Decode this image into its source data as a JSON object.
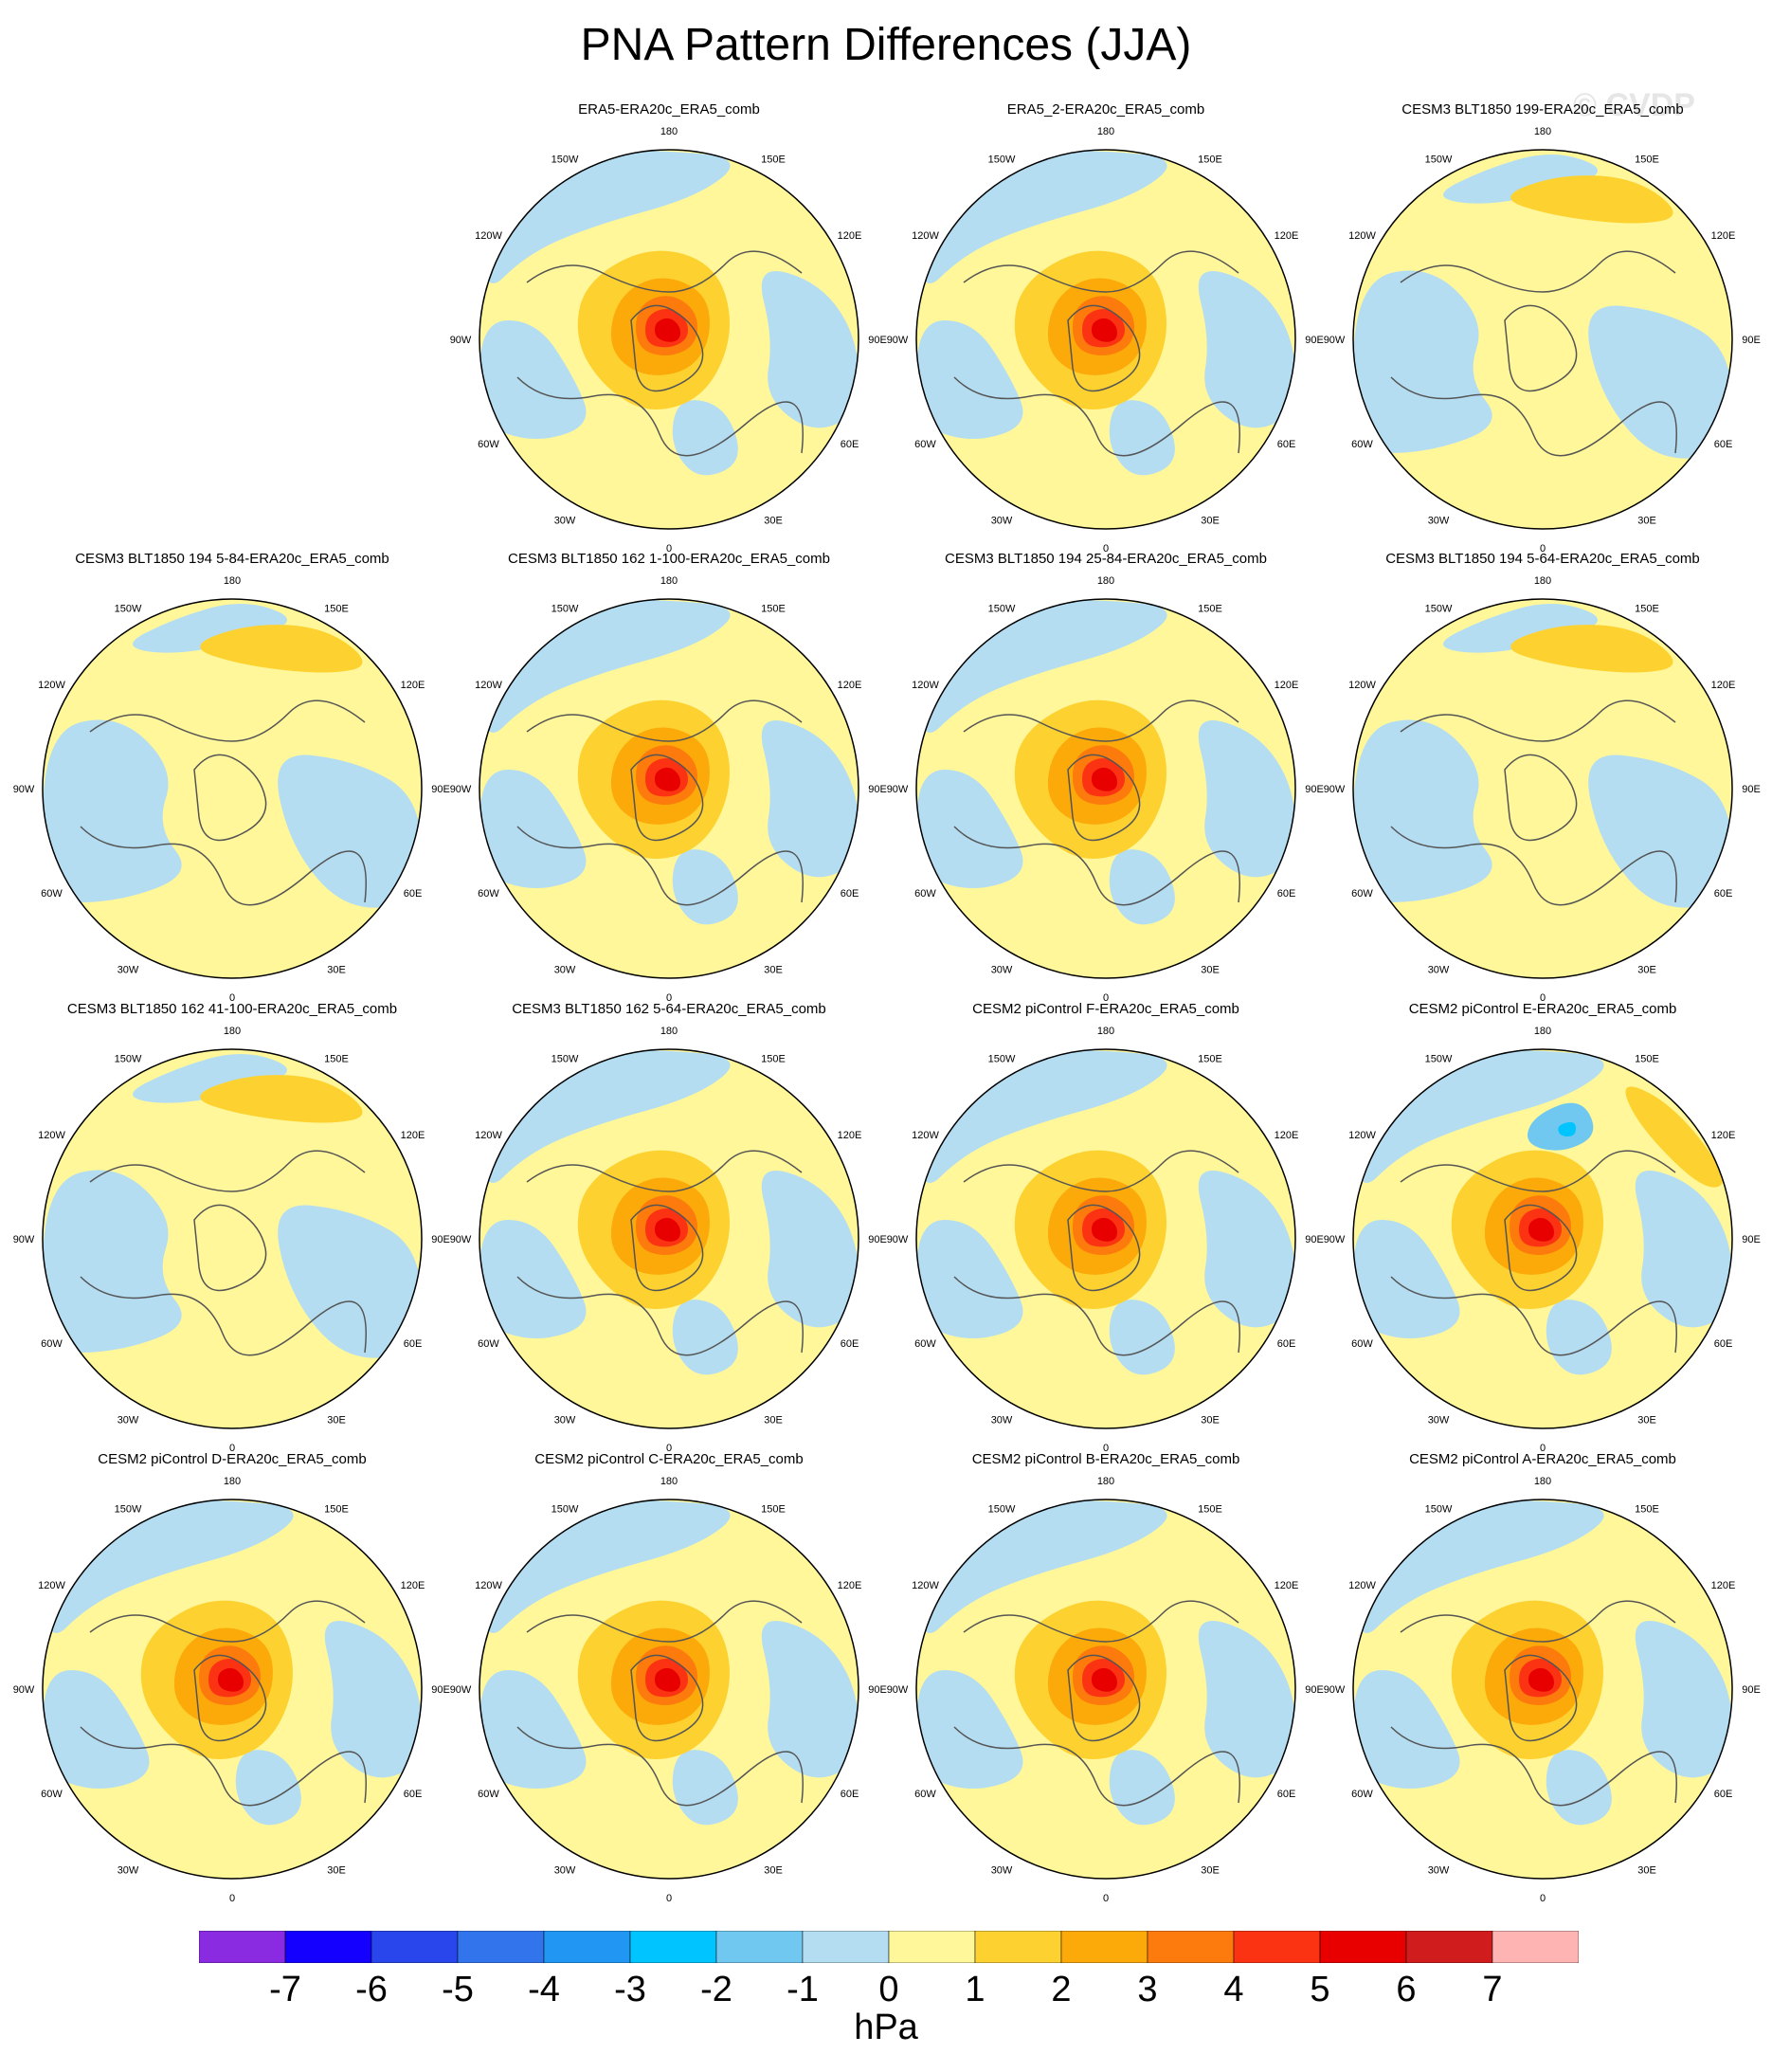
{
  "title": "PNA Pattern Differences (JJA)",
  "watermark": "© CVDP",
  "panels": [
    {
      "name": "ERA5-ERA20c_ERA5_comb",
      "empty": false,
      "variant": "center"
    },
    {
      "name": "ERA5_2-ERA20c_ERA5_comb",
      "empty": false,
      "variant": "center"
    },
    {
      "name": "CESM3 BLT1850 199-ERA20c_ERA5_comb",
      "empty": false,
      "variant": "arc"
    },
    {
      "name": "CESM3 BLT1850 194 5-84-ERA20c_ERA5_comb",
      "empty": false,
      "variant": "arc"
    },
    {
      "name": "CESM3 BLT1850 162 1-100-ERA20c_ERA5_comb",
      "empty": false,
      "variant": "center"
    },
    {
      "name": "CESM3 BLT1850 194 25-84-ERA20c_ERA5_comb",
      "empty": false,
      "variant": "center"
    },
    {
      "name": "CESM3 BLT1850 194 5-64-ERA20c_ERA5_comb",
      "empty": false,
      "variant": "arc"
    },
    {
      "name": "CESM3 BLT1850 162 41-100-ERA20c_ERA5_comb",
      "empty": false,
      "variant": "arc"
    },
    {
      "name": "CESM3 BLT1850 162 5-64-ERA20c_ERA5_comb",
      "empty": false,
      "variant": "center"
    },
    {
      "name": "CESM2 piControl F-ERA20c_ERA5_comb",
      "empty": false,
      "variant": "center"
    },
    {
      "name": "CESM2 piControl E-ERA20c_ERA5_comb",
      "empty": false,
      "variant": "centerE"
    },
    {
      "name": "CESM2 piControl D-ERA20c_ERA5_comb",
      "empty": false,
      "variant": "center"
    },
    {
      "name": "CESM2 piControl C-ERA20c_ERA5_comb",
      "empty": false,
      "variant": "center"
    },
    {
      "name": "CESM2 piControl B-ERA20c_ERA5_comb",
      "empty": false,
      "variant": "center"
    },
    {
      "name": "CESM2 piControl A-ERA20c_ERA5_comb",
      "empty": false,
      "variant": "center"
    }
  ],
  "longitude_labels": [
    "180",
    "150E",
    "120E",
    "90E",
    "60E",
    "30E",
    "0",
    "30W",
    "60W",
    "90W",
    "120W",
    "150W"
  ],
  "colorbar": {
    "unit": "hPa",
    "labels": [
      "-7",
      "-6",
      "-5",
      "-4",
      "-3",
      "-2",
      "-1",
      "0",
      "1",
      "2",
      "3",
      "4",
      "5",
      "6",
      "7"
    ],
    "colors": [
      "#8a2be2",
      "#1400ff",
      "#2846ec",
      "#3274ec",
      "#2196f3",
      "#00c4ff",
      "#70c8f0",
      "#b4ddf2",
      "#fff79a",
      "#fdd230",
      "#fca90a",
      "#fc7b0c",
      "#fc3312",
      "#e80000",
      "#d01c1c",
      "#ffb4b4"
    ]
  },
  "map_colors": {
    "neg1": "#b4ddf2",
    "pos1": "#fff79a",
    "pos2": "#fdd230",
    "pos3": "#fca90a",
    "pos4": "#fc7b0c",
    "pos5": "#fc3312",
    "pos6": "#e80000",
    "pos7": "#d01c1c",
    "neg2": "#70c8f0",
    "neg3": "#00c4ff",
    "coast": "#555555"
  }
}
